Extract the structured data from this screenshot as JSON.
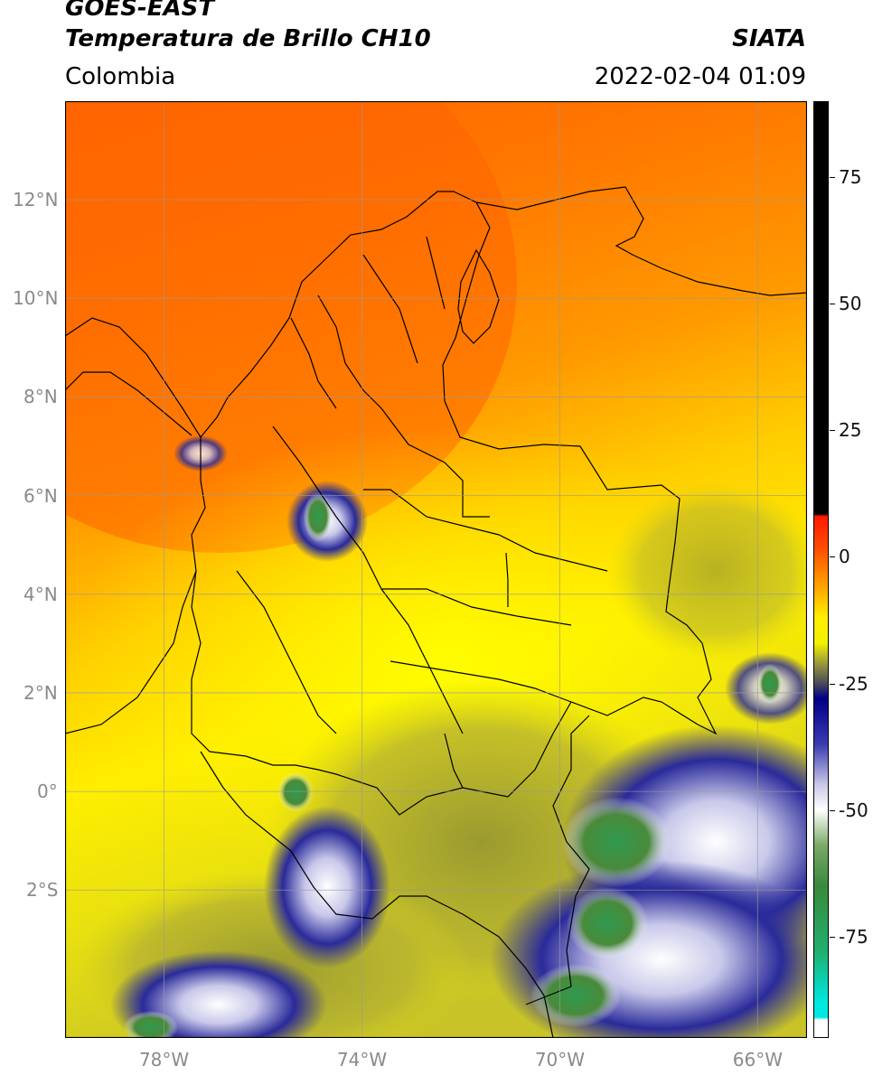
{
  "header": {
    "title_line1": "GOES-EAST",
    "title_line2": "Temperatura de Brillo CH10",
    "organization": "SIATA",
    "region": "Colombia",
    "timestamp": "2022-02-04 01:09"
  },
  "map": {
    "lon_range": [
      -80,
      -65
    ],
    "lat_range": [
      -5,
      14
    ],
    "lat_ticks": [
      {
        "value": 12,
        "label": "12°N"
      },
      {
        "value": 10,
        "label": "10°N"
      },
      {
        "value": 8,
        "label": "8°N"
      },
      {
        "value": 6,
        "label": "6°N"
      },
      {
        "value": 4,
        "label": "4°N"
      },
      {
        "value": 2,
        "label": "2°N"
      },
      {
        "value": 0,
        "label": "0°"
      },
      {
        "value": -2,
        "label": "2°S"
      }
    ],
    "lon_ticks": [
      {
        "value": -78,
        "label": "78°W"
      },
      {
        "value": -74,
        "label": "74°W"
      },
      {
        "value": -70,
        "label": "70°W"
      },
      {
        "value": -66,
        "label": "66°W"
      }
    ],
    "gridlines": true
  },
  "colorbar": {
    "range": [
      -95,
      90
    ],
    "ticks": [
      {
        "value": 75,
        "label": "75"
      },
      {
        "value": 50,
        "label": "50"
      },
      {
        "value": 25,
        "label": "25"
      },
      {
        "value": 0,
        "label": "0"
      },
      {
        "value": -25,
        "label": "-25"
      },
      {
        "value": -50,
        "label": "-50"
      },
      {
        "value": -75,
        "label": "-75"
      }
    ],
    "stops": [
      {
        "value": 90,
        "color": "#000000"
      },
      {
        "value": 8.5,
        "color": "#000000"
      },
      {
        "value": 8,
        "color": "#ff1a00"
      },
      {
        "value": 2,
        "color": "#ff4a00"
      },
      {
        "value": -5,
        "color": "#ff9a00"
      },
      {
        "value": -12,
        "color": "#ffee00"
      },
      {
        "value": -17,
        "color": "#f2f200"
      },
      {
        "value": -21,
        "color": "#9a9a3a"
      },
      {
        "value": -25,
        "color": "#4a4a5a"
      },
      {
        "value": -28,
        "color": "#000088"
      },
      {
        "value": -37,
        "color": "#3a3ab0"
      },
      {
        "value": -45,
        "color": "#c8c8e8"
      },
      {
        "value": -50,
        "color": "#ffffff"
      },
      {
        "value": -57,
        "color": "#7aaa66"
      },
      {
        "value": -65,
        "color": "#3a8a3a"
      },
      {
        "value": -78,
        "color": "#20b070"
      },
      {
        "value": -88,
        "color": "#00e8e0"
      },
      {
        "value": -91,
        "color": "#00e8e0"
      },
      {
        "value": -91.5,
        "color": "#ffffff"
      },
      {
        "value": -95,
        "color": "#ffffff"
      }
    ]
  },
  "palette": {
    "warm_orange": "#ff6a00",
    "orange": "#ff9a00",
    "yellow": "#ffee00",
    "olive": "#b8b830",
    "navy": "#1a1a8a",
    "white": "#ffffff",
    "green": "#3a8a3a",
    "teal": "#20c0a0",
    "border": "#000000",
    "grid": "#9a9a9a"
  }
}
